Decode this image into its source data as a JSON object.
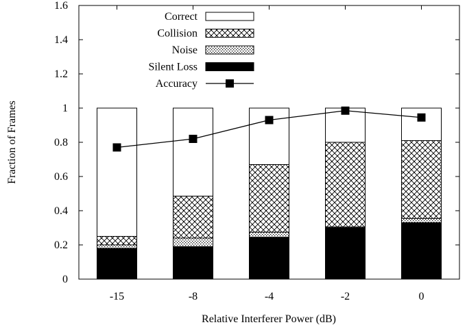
{
  "chart_data": {
    "type": "bar",
    "stacked": true,
    "title": "",
    "xlabel": "Relative Interferer Power (dB)",
    "ylabel": "Fraction of Frames",
    "ylim": [
      0,
      1.6
    ],
    "yticks": [
      "0",
      "0.2",
      "0.4",
      "0.6",
      "0.8",
      "1",
      "1.2",
      "1.4",
      "1.6"
    ],
    "categories": [
      "-15",
      "-8",
      "-4",
      "-2",
      "0"
    ],
    "legend_position": "top-center",
    "grid": false,
    "series": [
      {
        "name": "Silent Loss",
        "pattern": "solid-black",
        "values": [
          0.18,
          0.19,
          0.245,
          0.3,
          0.33
        ]
      },
      {
        "name": "Noise",
        "pattern": "fine-dots",
        "values": [
          0.02,
          0.05,
          0.03,
          0.005,
          0.025
        ]
      },
      {
        "name": "Collision",
        "pattern": "crosshatch",
        "values": [
          0.05,
          0.245,
          0.395,
          0.495,
          0.455
        ]
      },
      {
        "name": "Correct",
        "pattern": "white",
        "values": [
          0.75,
          0.515,
          0.33,
          0.2,
          0.19
        ]
      }
    ],
    "line_series": {
      "name": "Accuracy",
      "marker": "square",
      "values": [
        0.77,
        0.82,
        0.93,
        0.985,
        0.945
      ]
    },
    "legend_order": [
      "Correct",
      "Collision",
      "Noise",
      "Silent Loss",
      "Accuracy"
    ]
  }
}
